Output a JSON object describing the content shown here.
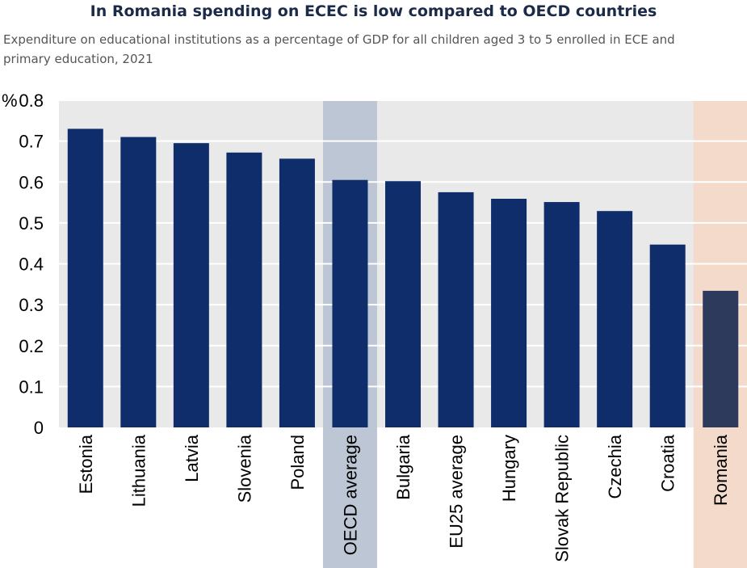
{
  "chart_data": {
    "type": "bar",
    "title": "In Romania spending on ECEC is low compared to OECD countries",
    "subtitle": "Expenditure on educational institutions as a percentage of GDP for all children aged 3 to 5 enrolled in ECE and primary education, 2021",
    "ylabel": "%",
    "ylim": [
      0,
      0.8
    ],
    "yticks": [
      "0",
      "0.1",
      "0.2",
      "0.3",
      "0.4",
      "0.5",
      "0.6",
      "0.7",
      "0.8"
    ],
    "grid": true,
    "categories": [
      "Estonia",
      "Lithuania",
      "Latvia",
      "Slovenia",
      "Poland",
      "OECD average",
      "Bulgaria",
      "EU25 average",
      "Hungary",
      "Slovak Republic",
      "Czechia",
      "Croatia",
      "Romania"
    ],
    "values": [
      0.73,
      0.71,
      0.695,
      0.672,
      0.657,
      0.605,
      0.602,
      0.575,
      0.559,
      0.551,
      0.529,
      0.447,
      0.334
    ],
    "highlight": {
      "OECD average": "#bcc6d4",
      "Romania": "#f3dacb"
    },
    "colors": {
      "bar": "#0f2d6b",
      "romania_bar": "#2d3a5c",
      "plot_background": "#e9e9e9",
      "gridline": "#ffffff",
      "axis_text": "#000000"
    }
  }
}
